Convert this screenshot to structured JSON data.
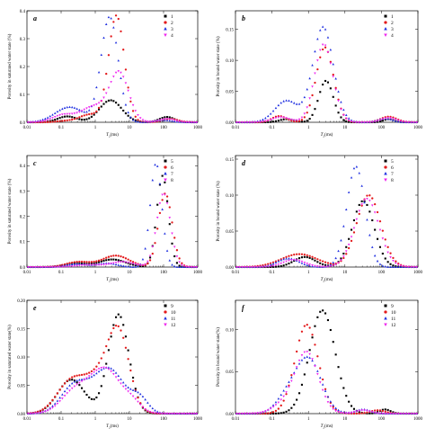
{
  "x_label": "T2(ms)",
  "x_ticks": [
    "0.01",
    "0.1",
    "1",
    "10",
    "100",
    "1000"
  ],
  "colors": {
    "s1": "#000000",
    "s2": "#e31a1c",
    "s3": "#1f2fe0",
    "s4": "#ee22ee"
  },
  "chart_data": [
    {
      "panel": "a",
      "type": "scatter",
      "ylabel": "Porosity in saturated water state (%)",
      "ylim": [
        0,
        0.4
      ],
      "yticks": [
        "0.0",
        "0.1",
        "0.2",
        "0.3",
        "0.4"
      ],
      "xscale": "log",
      "xlim": [
        0.01,
        1000
      ],
      "series": [
        {
          "name": "1",
          "marker": "square",
          "peaks": [
            [
              -0.82,
              0.021,
              0.28
            ],
            [
              0.45,
              0.079,
              0.33
            ],
            [
              2.1,
              0.019,
              0.22
            ]
          ]
        },
        {
          "name": "2",
          "marker": "circle",
          "peaks": [
            [
              -0.9,
              0.004,
              0.25
            ],
            [
              -0.15,
              0.028,
              0.32
            ],
            [
              0.62,
              0.382,
              0.23
            ],
            [
              2.2,
              0.012,
              0.22
            ]
          ]
        },
        {
          "name": "3",
          "marker": "triangle",
          "peaks": [
            [
              -0.75,
              0.055,
              0.42
            ],
            [
              0.42,
              0.378,
              0.25
            ],
            [
              2.0,
              0.008,
              0.25
            ]
          ]
        },
        {
          "name": "4",
          "marker": "triangle-down",
          "peaks": [
            [
              -0.95,
              0.025,
              0.3
            ],
            [
              -0.05,
              0.055,
              0.38
            ],
            [
              0.7,
              0.175,
              0.28
            ],
            [
              2.1,
              0.012,
              0.22
            ]
          ]
        }
      ]
    },
    {
      "panel": "b",
      "type": "scatter",
      "ylabel": "Porosity in bound water state (%)",
      "ylim": [
        0,
        0.18
      ],
      "yticks": [
        "0.00",
        "0.05",
        "0.10",
        "0.15"
      ],
      "xscale": "log",
      "xlim": [
        0.01,
        1000
      ],
      "series": [
        {
          "name": "1",
          "marker": "square",
          "peaks": [
            [
              -0.6,
              0.005,
              0.2
            ],
            [
              0.48,
              0.067,
              0.2
            ],
            [
              2.2,
              0.005,
              0.15
            ]
          ]
        },
        {
          "name": "2",
          "marker": "circle",
          "peaks": [
            [
              -0.8,
              0.01,
              0.2
            ],
            [
              0.45,
              0.121,
              0.24
            ],
            [
              2.2,
              0.009,
              0.22
            ]
          ]
        },
        {
          "name": "3",
          "marker": "triangle",
          "peaks": [
            [
              -0.6,
              0.035,
              0.32
            ],
            [
              0.4,
              0.154,
              0.28
            ],
            [
              2.1,
              0.006,
              0.2
            ]
          ]
        },
        {
          "name": "4",
          "marker": "triangle-down",
          "peaks": [
            [
              -0.75,
              0.008,
              0.25
            ],
            [
              0.42,
              0.126,
              0.25
            ],
            [
              2.2,
              0.007,
              0.2
            ]
          ]
        }
      ]
    },
    {
      "panel": "c",
      "type": "scatter",
      "ylabel": "Porosity in saturated water state (%)",
      "ylim": [
        0,
        0.44
      ],
      "yticks": [
        "0.0",
        "0.1",
        "0.2",
        "0.3",
        "0.4"
      ],
      "xscale": "log",
      "xlim": [
        0.01,
        1000
      ],
      "series": [
        {
          "name": "5",
          "marker": "square",
          "peaks": [
            [
              -0.6,
              0.015,
              0.3
            ],
            [
              0.5,
              0.03,
              0.4
            ],
            [
              1.97,
              0.36,
              0.17
            ]
          ]
        },
        {
          "name": "6",
          "marker": "circle",
          "peaks": [
            [
              -0.5,
              0.02,
              0.35
            ],
            [
              0.6,
              0.045,
              0.4
            ],
            [
              2.05,
              0.29,
              0.2
            ]
          ]
        },
        {
          "name": "7",
          "marker": "triangle",
          "peaks": [
            [
              -0.55,
              0.012,
              0.3
            ],
            [
              0.35,
              0.015,
              0.3
            ],
            [
              1.78,
              0.41,
              0.17
            ]
          ]
        },
        {
          "name": "8",
          "marker": "triangle-down",
          "peaks": [
            [
              -0.2,
              0.008,
              0.35
            ],
            [
              0.8,
              0.02,
              0.35
            ],
            [
              2.0,
              0.29,
              0.2
            ]
          ]
        }
      ]
    },
    {
      "panel": "d",
      "type": "scatter",
      "ylabel": "Porosity in bound water state (%)",
      "ylim": [
        0,
        0.155
      ],
      "yticks": [
        "0.00",
        "0.05",
        "0.10",
        "0.15"
      ],
      "xscale": "log",
      "xlim": [
        0.01,
        1000
      ],
      "series": [
        {
          "name": "5",
          "marker": "square",
          "peaks": [
            [
              -0.1,
              0.014,
              0.3
            ],
            [
              1.5,
              0.092,
              0.3
            ]
          ]
        },
        {
          "name": "6",
          "marker": "circle",
          "peaks": [
            [
              -0.25,
              0.018,
              0.5
            ],
            [
              1.65,
              0.1,
              0.33
            ]
          ]
        },
        {
          "name": "7",
          "marker": "triangle",
          "peaks": [
            [
              -0.55,
              0.012,
              0.3
            ],
            [
              1.3,
              0.14,
              0.25
            ]
          ]
        },
        {
          "name": "8",
          "marker": "triangle-down",
          "peaks": [
            [
              -0.4,
              0.01,
              0.3
            ],
            [
              1.6,
              0.095,
              0.33
            ]
          ]
        }
      ]
    },
    {
      "panel": "e",
      "type": "scatter",
      "ylabel": "Porosity in saturated water state(%)",
      "ylim": [
        0,
        0.2
      ],
      "yticks": [
        "0.00",
        "0.05",
        "0.10",
        "0.15",
        "0.20"
      ],
      "xscale": "log",
      "xlim": [
        0.01,
        1000
      ],
      "series": [
        {
          "name": "9",
          "marker": "square",
          "peaks": [
            [
              -0.7,
              0.06,
              0.4
            ],
            [
              0.68,
              0.175,
              0.3
            ]
          ]
        },
        {
          "name": "10",
          "marker": "circle",
          "peaks": [
            [
              -0.75,
              0.05,
              0.4
            ],
            [
              0.2,
              0.07,
              0.5
            ],
            [
              0.7,
              0.11,
              0.3
            ]
          ]
        },
        {
          "name": "11",
          "marker": "triangle",
          "peaks": [
            [
              -0.6,
              0.05,
              0.4
            ],
            [
              0.4,
              0.079,
              0.45
            ],
            [
              1.3,
              0.025,
              0.25
            ]
          ]
        },
        {
          "name": "12",
          "marker": "triangle-down",
          "peaks": [
            [
              -0.6,
              0.038,
              0.4
            ],
            [
              0.3,
              0.078,
              0.45
            ],
            [
              1.1,
              0.015,
              0.25
            ]
          ]
        }
      ]
    },
    {
      "panel": "f",
      "type": "scatter",
      "ylabel": "Porosity in bound water state(%)",
      "ylim": [
        0,
        0.135
      ],
      "yticks": [
        "0.00",
        "0.05",
        "0.10"
      ],
      "xscale": "log",
      "xlim": [
        0.01,
        1000
      ],
      "series": [
        {
          "name": "9",
          "marker": "square",
          "peaks": [
            [
              0.38,
              0.123,
              0.35
            ],
            [
              2.1,
              0.005,
              0.15
            ]
          ]
        },
        {
          "name": "10",
          "marker": "circle",
          "peaks": [
            [
              -0.05,
              0.106,
              0.32
            ],
            [
              1.9,
              0.004,
              0.2
            ]
          ]
        },
        {
          "name": "11",
          "marker": "triangle",
          "peaks": [
            [
              -0.6,
              0.018,
              0.3
            ],
            [
              0.0,
              0.065,
              0.35
            ],
            [
              1.5,
              0.005,
              0.2
            ]
          ]
        },
        {
          "name": "12",
          "marker": "triangle-down",
          "peaks": [
            [
              -0.7,
              0.01,
              0.3
            ],
            [
              -0.05,
              0.073,
              0.32
            ],
            [
              1.5,
              0.004,
              0.2
            ]
          ]
        }
      ]
    }
  ]
}
